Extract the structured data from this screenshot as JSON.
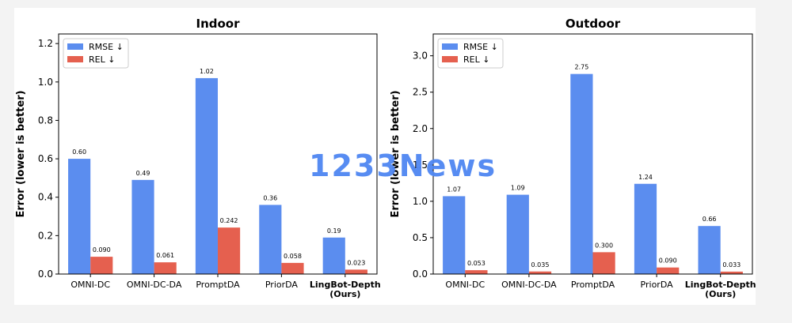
{
  "chart_data": [
    {
      "type": "bar",
      "title": "Indoor",
      "ylabel": "Error (lower is better)",
      "ylim": [
        0,
        1.25
      ],
      "yticks": [
        0.0,
        0.2,
        0.4,
        0.6,
        0.8,
        1.0,
        1.2
      ],
      "ytick_labels": [
        "0.0",
        "0.2",
        "0.4",
        "0.6",
        "0.8",
        "1.0",
        "1.2"
      ],
      "categories": [
        "OMNI-DC",
        "OMNI-DC-DA",
        "PromptDA",
        "PriorDA",
        "LingBot-Depth\n(Ours)"
      ],
      "bold_category_index": 4,
      "series": [
        {
          "name": "RMSE ↓",
          "color": "#5b8def",
          "values": [
            0.6,
            0.49,
            1.02,
            0.36,
            0.19
          ],
          "labels": [
            "0.60",
            "0.49",
            "1.02",
            "0.36",
            "0.19"
          ]
        },
        {
          "name": "REL ↓",
          "color": "#e5604f",
          "values": [
            0.09,
            0.061,
            0.242,
            0.058,
            0.023
          ],
          "labels": [
            "0.090",
            "0.061",
            "0.242",
            "0.058",
            "0.023"
          ]
        }
      ],
      "legend": "top-left"
    },
    {
      "type": "bar",
      "title": "Outdoor",
      "ylabel": "Error (lower is better)",
      "ylim": [
        0,
        3.3
      ],
      "yticks": [
        0.0,
        0.5,
        1.0,
        1.5,
        2.0,
        2.5,
        3.0
      ],
      "ytick_labels": [
        "0.0",
        "0.5",
        "1.0",
        "1.5",
        "2.0",
        "2.5",
        "3.0"
      ],
      "categories": [
        "OMNI-DC",
        "OMNI-DC-DA",
        "PromptDA",
        "PriorDA",
        "LingBot-Depth\n(Ours)"
      ],
      "bold_category_index": 4,
      "series": [
        {
          "name": "RMSE ↓",
          "color": "#5b8def",
          "values": [
            1.07,
            1.09,
            2.75,
            1.24,
            0.66
          ],
          "labels": [
            "1.07",
            "1.09",
            "2.75",
            "1.24",
            "0.66"
          ]
        },
        {
          "name": "REL ↓",
          "color": "#e5604f",
          "values": [
            0.053,
            0.035,
            0.3,
            0.09,
            0.033
          ],
          "labels": [
            "0.053",
            "0.035",
            "0.300",
            "0.090",
            "0.033"
          ]
        }
      ],
      "legend": "top-left"
    }
  ],
  "watermark": {
    "text": "1233News",
    "color": "#4f86f2"
  }
}
